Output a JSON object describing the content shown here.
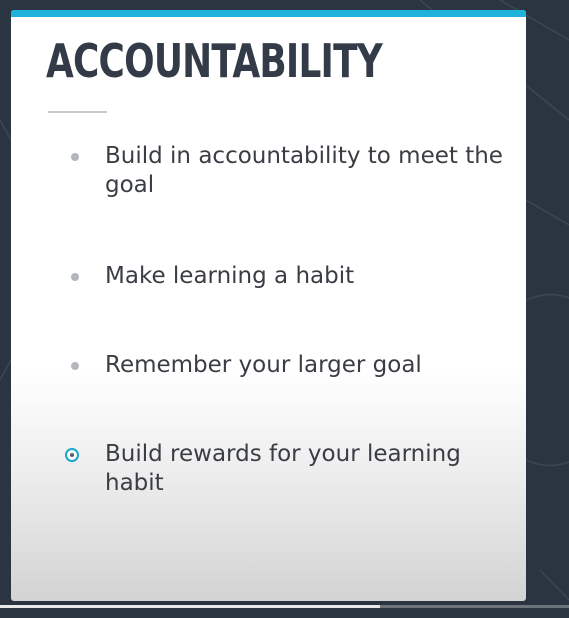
{
  "slide": {
    "title": "ACCOUNTABILITY",
    "accent_color": "#1fb3dc",
    "bullets": [
      {
        "text": "Build in accountability to meet the goal",
        "active": false
      },
      {
        "text": "Make learning a habit",
        "active": false
      },
      {
        "text": "Remember your larger goal",
        "active": false
      },
      {
        "text": "Build rewards for your learning habit",
        "active": true
      }
    ]
  },
  "player": {
    "progress": 0.667
  }
}
